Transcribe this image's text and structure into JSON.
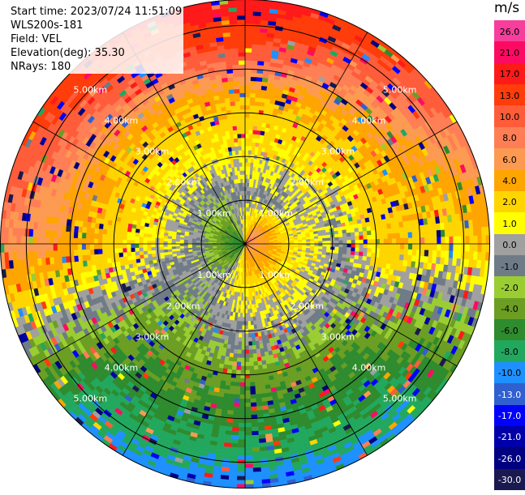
{
  "info": {
    "start_time": "Start time: 2023/07/24 11:51:09",
    "instrument": "WLS200s-181",
    "field": "Field: VEL",
    "elevation": "Elevation(deg): 35.30",
    "nrays": "NRays: 180"
  },
  "colorbar": {
    "unit": "m/s",
    "ticks": [
      "26.0",
      "21.0",
      "17.0",
      "13.0",
      "10.0",
      "8.0",
      "6.0",
      "4.0",
      "2.0",
      "1.0",
      "0.0",
      "-1.0",
      "-2.0",
      "-4.0",
      "-6.0",
      "-8.0",
      "-10.0",
      "-13.0",
      "-17.0",
      "-21.0",
      "-26.0",
      "-30.0"
    ],
    "colors": [
      "#f73e9c",
      "#fd0b62",
      "#ff1a1a",
      "#ff3c0a",
      "#ff5c3a",
      "#ff7e55",
      "#fd9a52",
      "#ffa500",
      "#ffd500",
      "#ffff00",
      "#a0a0a0",
      "#6f7c87",
      "#9acd32",
      "#6b9e23",
      "#2e8b2e",
      "#22a85e",
      "#1e90ff",
      "#3060d0",
      "#0000ff",
      "#0000a8",
      "#000080",
      "#1a1a50"
    ]
  },
  "chart_data": {
    "type": "heatmap",
    "title": "",
    "field": "VEL",
    "projection": "polar PPI",
    "range_rings": [
      "1.00km",
      "2.00km",
      "3.00km",
      "4.00km",
      "5.00km"
    ],
    "max_range_km": 5.6,
    "radial_spokes_deg": [
      0,
      30,
      60,
      90,
      120,
      150,
      180,
      210,
      240,
      270,
      300,
      330
    ],
    "value_range": [
      -30,
      26
    ],
    "note_values": "approximate velocity by sector and range",
    "sectors": [
      {
        "azimuth_deg": 0,
        "profile_mps": [
          3,
          0,
          2,
          4,
          13,
          21
        ]
      },
      {
        "azimuth_deg": 45,
        "profile_mps": [
          10,
          0,
          2,
          4,
          8,
          13
        ]
      },
      {
        "azimuth_deg": 90,
        "profile_mps": [
          8,
          2,
          0,
          4,
          2,
          4
        ]
      },
      {
        "azimuth_deg": 135,
        "profile_mps": [
          8,
          2,
          0,
          -4,
          -6,
          -8
        ]
      },
      {
        "azimuth_deg": 180,
        "profile_mps": [
          6,
          2,
          0,
          -4,
          -6,
          -10
        ]
      },
      {
        "azimuth_deg": 225,
        "profile_mps": [
          -6,
          0,
          -2,
          -4,
          -6,
          -8
        ]
      },
      {
        "azimuth_deg": 270,
        "profile_mps": [
          -6,
          0,
          2,
          4,
          6,
          8
        ]
      },
      {
        "azimuth_deg": 315,
        "profile_mps": [
          -6,
          -1,
          2,
          4,
          10,
          17
        ]
      }
    ]
  }
}
